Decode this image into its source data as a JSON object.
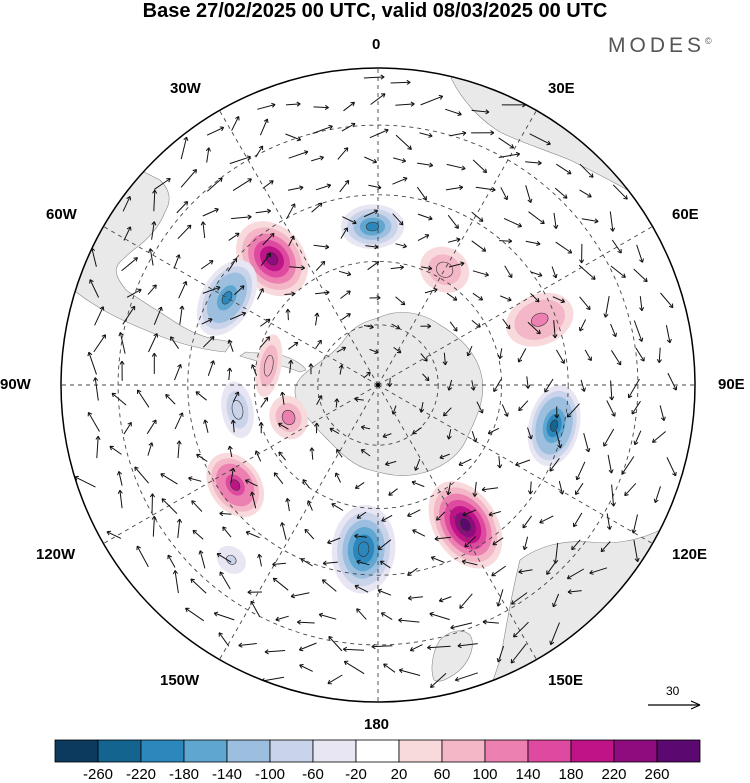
{
  "title": "Base 27/02/2025 00 UTC, valid 08/03/2025 00 UTC",
  "brand": {
    "name": "MODES",
    "mark": "©"
  },
  "longitude_labels": {
    "deg0": "0",
    "deg30e": "30E",
    "deg60e": "60E",
    "deg90e": "90E",
    "deg120e": "120E",
    "deg150e": "150E",
    "deg180": "180",
    "deg150w": "150W",
    "deg120w": "120W",
    "deg90w": "90W",
    "deg60w": "60W",
    "deg30w": "30W"
  },
  "reference_vector": {
    "label": "30",
    "value": 30
  },
  "colorbar": {
    "labels": [
      "-260",
      "-220",
      "-180",
      "-140",
      "-100",
      "-60",
      "-20",
      "20",
      "60",
      "100",
      "140",
      "180",
      "220",
      "260"
    ],
    "colors": [
      "#0b3a5e",
      "#13648f",
      "#2c87bd",
      "#5fa6d1",
      "#9cbfdf",
      "#c9d3e9",
      "#e7e6f2",
      "#ffffff",
      "#f8dadd",
      "#f3b7c7",
      "#ec80b0",
      "#de4aa0",
      "#bf1487",
      "#8e0c7e",
      "#5b0870"
    ]
  },
  "map": {
    "projection": "south polar stereographic",
    "land_color": "#e9e9e9",
    "anomaly_cells": [
      {
        "lon": -40,
        "r": 0.52,
        "rx": 0.1,
        "ry": 0.13,
        "peak": 240
      },
      {
        "lon": -60,
        "r": 0.55,
        "rx": 0.13,
        "ry": 0.08,
        "peak": -210
      },
      {
        "lon": -2,
        "r": 0.5,
        "rx": 0.1,
        "ry": 0.07,
        "peak": -200
      },
      {
        "lon": 30,
        "r": 0.42,
        "rx": 0.08,
        "ry": 0.07,
        "peak": 90
      },
      {
        "lon": 68,
        "r": 0.55,
        "rx": 0.08,
        "ry": 0.11,
        "peak": 130
      },
      {
        "lon": 103,
        "r": 0.57,
        "rx": 0.13,
        "ry": 0.08,
        "peak": -250
      },
      {
        "lon": 148,
        "r": 0.52,
        "rx": 0.1,
        "ry": 0.15,
        "peak": 260
      },
      {
        "lon": -175,
        "r": 0.52,
        "rx": 0.1,
        "ry": 0.14,
        "peak": -220
      },
      {
        "lon": -125,
        "r": 0.55,
        "rx": 0.11,
        "ry": 0.08,
        "peak": 210
      },
      {
        "lon": -110,
        "r": 0.3,
        "rx": 0.07,
        "ry": 0.06,
        "peak": 120
      },
      {
        "lon": -100,
        "r": 0.45,
        "rx": 0.09,
        "ry": 0.05,
        "peak": -100
      },
      {
        "lon": -80,
        "r": 0.35,
        "rx": 0.1,
        "ry": 0.04,
        "peak": 90
      },
      {
        "lon": -140,
        "r": 0.72,
        "rx": 0.05,
        "ry": 0.04,
        "peak": -90
      }
    ]
  }
}
